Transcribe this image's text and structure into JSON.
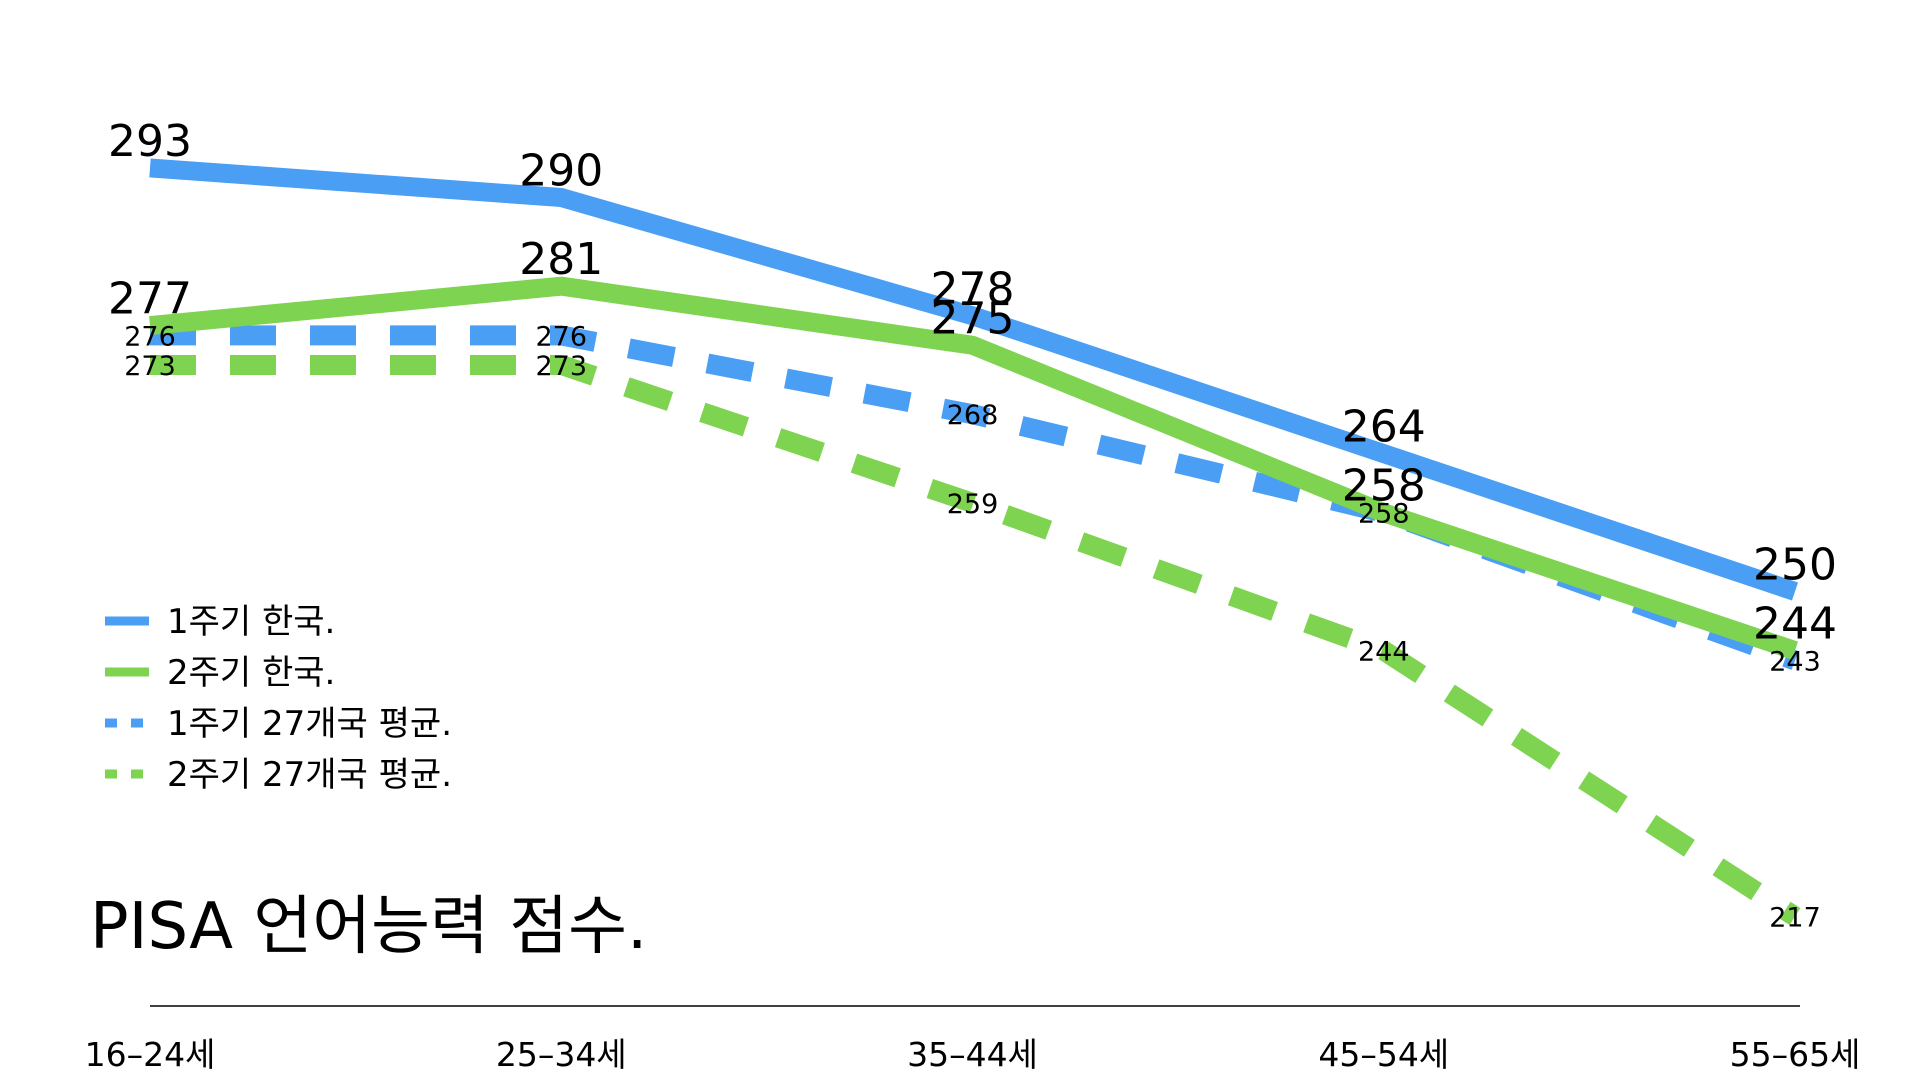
{
  "chart_data": {
    "type": "line",
    "title": "PISA 언어능력 점수.",
    "categories": [
      "16–24세",
      "25–34세",
      "35–44세",
      "45–54세",
      "55–65세"
    ],
    "ylim": [
      200,
      300
    ],
    "grid": false,
    "legend_position": "bottom-left",
    "series": [
      {
        "name": "1주기 한국.",
        "values": [
          293,
          290,
          278,
          264,
          250
        ],
        "color": "#4a9ff5",
        "style": "solid"
      },
      {
        "name": "2주기 한국.",
        "values": [
          277,
          281,
          275,
          258,
          244
        ],
        "color": "#7ed350",
        "style": "solid"
      },
      {
        "name": "1주기 27개국 평균.",
        "values": [
          276,
          276,
          268,
          258,
          243
        ],
        "color": "#4a9ff5",
        "style": "dashed"
      },
      {
        "name": "2주기 27개국 평균.",
        "values": [
          273,
          273,
          259,
          244,
          217
        ],
        "color": "#7ed350",
        "style": "dashed"
      }
    ]
  }
}
